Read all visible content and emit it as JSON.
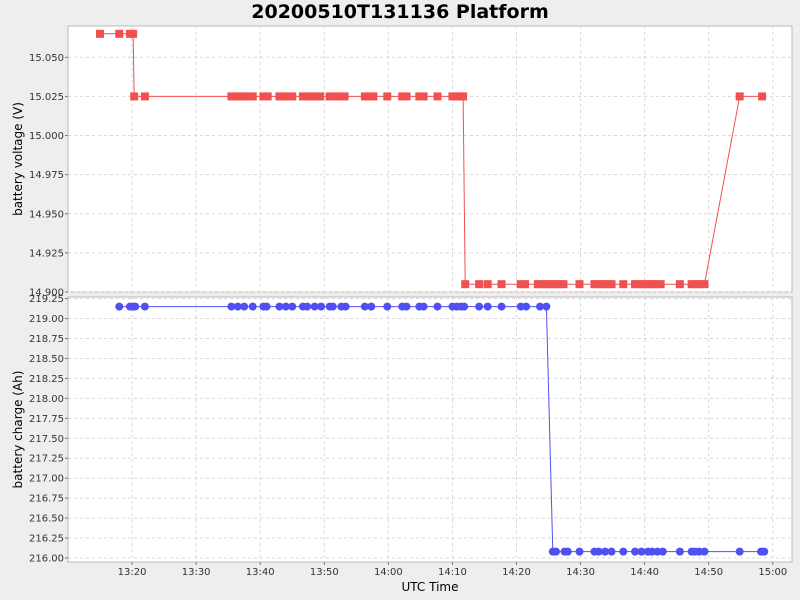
{
  "page": {
    "title": "20200510T131136 Platform"
  },
  "colors": {
    "voltage_series": "#f05050",
    "charge_series": "#5050f0",
    "plot_bg": "#ffffff",
    "grid": "#d8d8d8"
  },
  "chart_data": [
    {
      "type": "line",
      "ylabel": "battery voltage (V)",
      "ylim": [
        14.9,
        15.07
      ],
      "yticks": [
        "14.900",
        "14.925",
        "14.950",
        "14.975",
        "15.000",
        "15.025",
        "15.050"
      ],
      "marker": "square",
      "grid": true,
      "series": [
        {
          "points": [
            [
              "13:15:00",
              15.065
            ],
            [
              "13:18:00",
              15.065
            ],
            [
              "13:19:40",
              15.065
            ],
            [
              "13:20:10",
              15.065
            ],
            [
              "13:20:20",
              15.025
            ],
            [
              "13:22:00",
              15.025
            ],
            [
              "13:35:30",
              15.025
            ],
            [
              "13:36:10",
              15.025
            ],
            [
              "13:36:50",
              15.025
            ],
            [
              "13:37:30",
              15.025
            ],
            [
              "13:38:10",
              15.025
            ],
            [
              "13:38:50",
              15.025
            ],
            [
              "13:40:30",
              15.025
            ],
            [
              "13:41:10",
              15.025
            ],
            [
              "13:43:00",
              15.025
            ],
            [
              "13:43:40",
              15.025
            ],
            [
              "13:44:20",
              15.025
            ],
            [
              "13:45:00",
              15.025
            ],
            [
              "13:46:40",
              15.025
            ],
            [
              "13:47:20",
              15.025
            ],
            [
              "13:48:00",
              15.025
            ],
            [
              "13:48:40",
              15.025
            ],
            [
              "13:49:20",
              15.025
            ],
            [
              "13:50:50",
              15.025
            ],
            [
              "13:51:30",
              15.025
            ],
            [
              "13:52:30",
              15.025
            ],
            [
              "13:53:10",
              15.025
            ],
            [
              "13:56:20",
              15.025
            ],
            [
              "13:57:00",
              15.025
            ],
            [
              "13:57:40",
              15.025
            ],
            [
              "13:59:50",
              15.025
            ],
            [
              "14:02:10",
              15.025
            ],
            [
              "14:02:50",
              15.025
            ],
            [
              "14:04:50",
              15.025
            ],
            [
              "14:05:30",
              15.025
            ],
            [
              "14:07:40",
              15.025
            ],
            [
              "14:10:00",
              15.025
            ],
            [
              "14:10:40",
              15.025
            ],
            [
              "14:11:20",
              15.025
            ],
            [
              "14:11:40",
              15.025
            ],
            [
              "14:12:00",
              14.905
            ],
            [
              "14:14:10",
              14.905
            ],
            [
              "14:15:30",
              14.905
            ],
            [
              "14:17:40",
              14.905
            ],
            [
              "14:20:40",
              14.905
            ],
            [
              "14:21:20",
              14.905
            ],
            [
              "14:23:20",
              14.905
            ],
            [
              "14:24:00",
              14.905
            ],
            [
              "14:24:40",
              14.905
            ],
            [
              "14:25:20",
              14.905
            ],
            [
              "14:26:00",
              14.905
            ],
            [
              "14:26:40",
              14.905
            ],
            [
              "14:27:20",
              14.905
            ],
            [
              "14:29:50",
              14.905
            ],
            [
              "14:32:10",
              14.905
            ],
            [
              "14:32:50",
              14.905
            ],
            [
              "14:33:30",
              14.905
            ],
            [
              "14:34:10",
              14.905
            ],
            [
              "14:34:50",
              14.905
            ],
            [
              "14:36:40",
              14.905
            ],
            [
              "14:38:30",
              14.905
            ],
            [
              "14:39:10",
              14.905
            ],
            [
              "14:39:50",
              14.905
            ],
            [
              "14:40:30",
              14.905
            ],
            [
              "14:41:10",
              14.905
            ],
            [
              "14:41:50",
              14.905
            ],
            [
              "14:42:30",
              14.905
            ],
            [
              "14:45:30",
              14.905
            ],
            [
              "14:47:20",
              14.905
            ],
            [
              "14:48:00",
              14.905
            ],
            [
              "14:48:40",
              14.905
            ],
            [
              "14:49:20",
              14.905
            ],
            [
              "14:54:50",
              15.025
            ],
            [
              "14:58:20",
              15.025
            ]
          ]
        }
      ]
    },
    {
      "type": "line",
      "xlabel": "UTC Time",
      "ylabel": "battery charge (Ah)",
      "ylim": [
        215.95,
        219.27
      ],
      "yticks": [
        "216.00",
        "216.25",
        "216.50",
        "216.75",
        "217.00",
        "217.25",
        "217.50",
        "217.75",
        "218.00",
        "218.25",
        "218.50",
        "218.75",
        "219.00",
        "219.25"
      ],
      "xlim": [
        "13:10:00",
        "15:03:00"
      ],
      "xticks": [
        "13:20",
        "13:30",
        "13:40",
        "13:50",
        "14:00",
        "14:10",
        "14:20",
        "14:30",
        "14:40",
        "14:50",
        "15:00"
      ],
      "marker": "circle",
      "grid": true,
      "series": [
        {
          "points": [
            [
              "13:18:00",
              219.15
            ],
            [
              "13:19:40",
              219.15
            ],
            [
              "13:20:10",
              219.15
            ],
            [
              "13:20:30",
              219.15
            ],
            [
              "13:22:00",
              219.15
            ],
            [
              "13:35:30",
              219.15
            ],
            [
              "13:36:30",
              219.15
            ],
            [
              "13:37:30",
              219.15
            ],
            [
              "13:38:50",
              219.15
            ],
            [
              "13:40:30",
              219.15
            ],
            [
              "13:41:00",
              219.15
            ],
            [
              "13:43:00",
              219.15
            ],
            [
              "13:44:00",
              219.15
            ],
            [
              "13:45:00",
              219.15
            ],
            [
              "13:46:40",
              219.15
            ],
            [
              "13:47:20",
              219.15
            ],
            [
              "13:48:30",
              219.15
            ],
            [
              "13:49:30",
              219.15
            ],
            [
              "13:50:50",
              219.15
            ],
            [
              "13:51:20",
              219.15
            ],
            [
              "13:52:40",
              219.15
            ],
            [
              "13:53:20",
              219.15
            ],
            [
              "13:56:20",
              219.15
            ],
            [
              "13:57:20",
              219.15
            ],
            [
              "13:59:50",
              219.15
            ],
            [
              "14:02:10",
              219.15
            ],
            [
              "14:02:50",
              219.15
            ],
            [
              "14:04:50",
              219.15
            ],
            [
              "14:05:30",
              219.15
            ],
            [
              "14:07:40",
              219.15
            ],
            [
              "14:10:00",
              219.15
            ],
            [
              "14:10:40",
              219.15
            ],
            [
              "14:11:20",
              219.15
            ],
            [
              "14:11:50",
              219.15
            ],
            [
              "14:14:10",
              219.15
            ],
            [
              "14:15:30",
              219.15
            ],
            [
              "14:17:40",
              219.15
            ],
            [
              "14:20:40",
              219.15
            ],
            [
              "14:21:30",
              219.15
            ],
            [
              "14:23:40",
              219.15
            ],
            [
              "14:24:40",
              219.15
            ],
            [
              "14:25:40",
              216.08
            ],
            [
              "14:26:10",
              216.08
            ],
            [
              "14:27:30",
              216.08
            ],
            [
              "14:28:00",
              216.08
            ],
            [
              "14:29:50",
              216.08
            ],
            [
              "14:32:10",
              216.08
            ],
            [
              "14:32:50",
              216.08
            ],
            [
              "14:33:50",
              216.08
            ],
            [
              "14:34:50",
              216.08
            ],
            [
              "14:36:40",
              216.08
            ],
            [
              "14:38:30",
              216.08
            ],
            [
              "14:39:30",
              216.08
            ],
            [
              "14:40:30",
              216.08
            ],
            [
              "14:41:10",
              216.08
            ],
            [
              "14:42:00",
              216.08
            ],
            [
              "14:42:50",
              216.08
            ],
            [
              "14:45:30",
              216.08
            ],
            [
              "14:47:20",
              216.08
            ],
            [
              "14:47:50",
              216.08
            ],
            [
              "14:48:30",
              216.08
            ],
            [
              "14:49:20",
              216.08
            ],
            [
              "14:54:50",
              216.08
            ],
            [
              "14:58:10",
              216.08
            ],
            [
              "14:58:40",
              216.08
            ]
          ]
        }
      ]
    }
  ]
}
